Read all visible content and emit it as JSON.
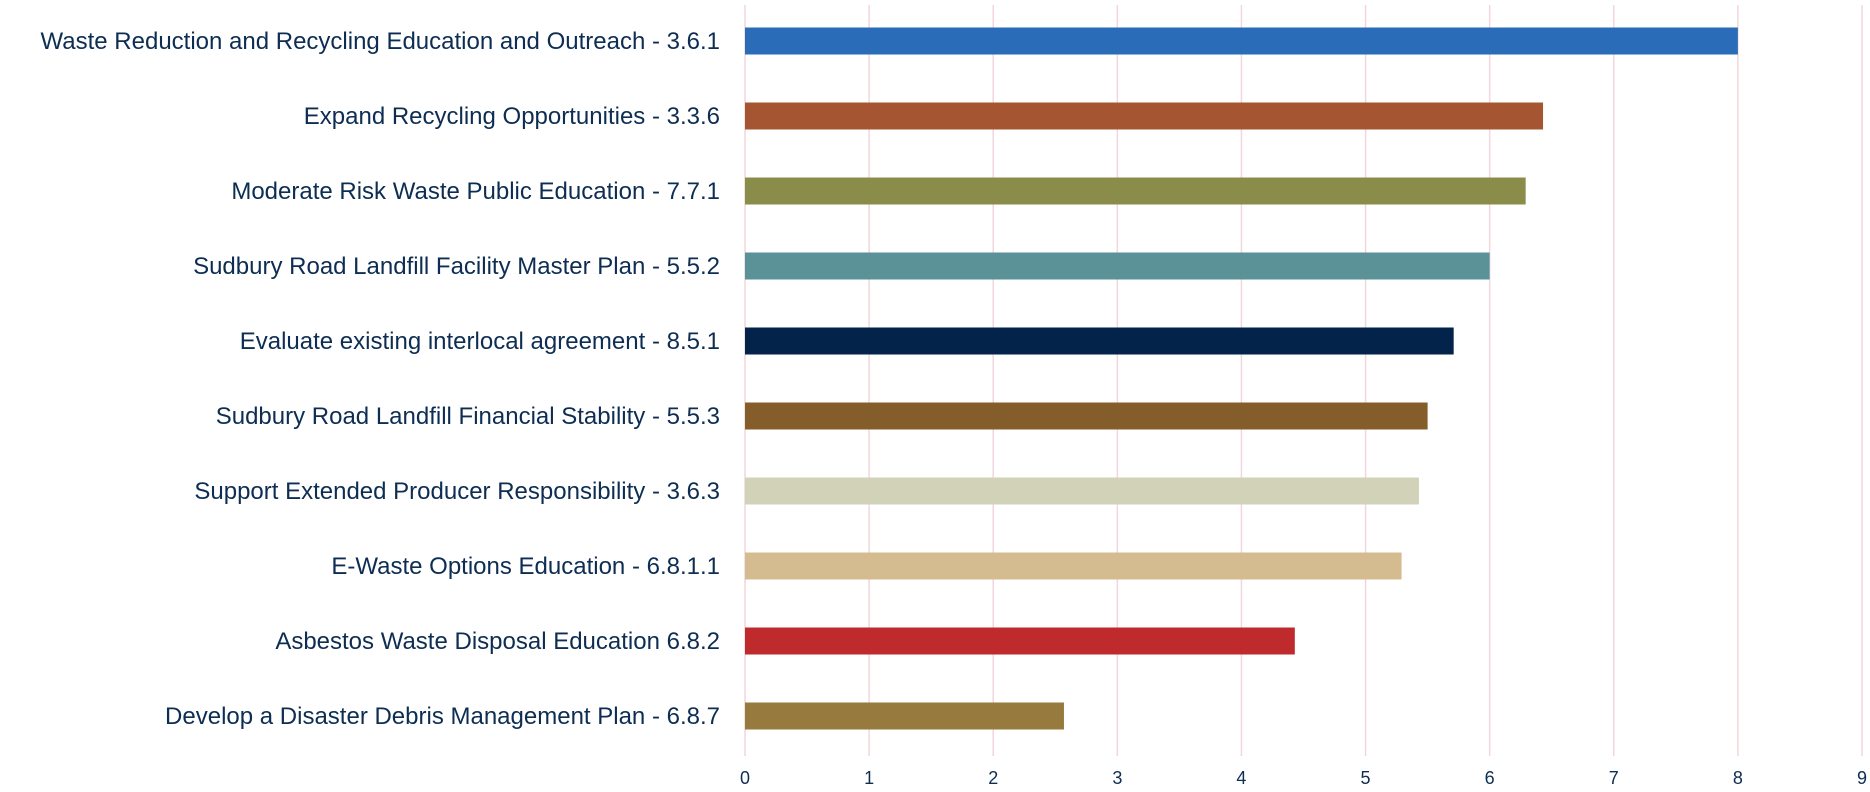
{
  "chart_data": {
    "type": "bar",
    "orientation": "horizontal",
    "title": "",
    "xlabel": "",
    "ylabel": "",
    "xlim": [
      0,
      9
    ],
    "ticks": [
      "0",
      "1",
      "2",
      "3",
      "4",
      "5",
      "6",
      "7",
      "8",
      "9"
    ],
    "grid": true,
    "legend": "none",
    "categories": [
      "Waste Reduction and Recycling Education and Outreach - 3.6.1",
      "Expand Recycling Opportunities  - 3.3.6",
      "Moderate Risk Waste Public Education - 7.7.1",
      "Sudbury Road Landfill Facility Master Plan - 5.5.2",
      "Evaluate existing interlocal agreement  - 8.5.1",
      "Sudbury Road Landfill Financial Stability - 5.5.3",
      "Support Extended Producer Responsibility - 3.6.3",
      "E-Waste Options Education - 6.8.1.1",
      "Asbestos Waste Disposal Education 6.8.2",
      "Develop a Disaster Debris Management Plan - 6.8.7"
    ],
    "values": [
      8.0,
      6.43,
      6.29,
      6.0,
      5.71,
      5.5,
      5.43,
      5.29,
      4.43,
      2.57
    ],
    "colors": [
      "#2b6cb8",
      "#a55531",
      "#8a8c4a",
      "#5b9298",
      "#03234a",
      "#845d2a",
      "#d2d2b8",
      "#d4bc90",
      "#bf2b2d",
      "#977a3e"
    ]
  }
}
